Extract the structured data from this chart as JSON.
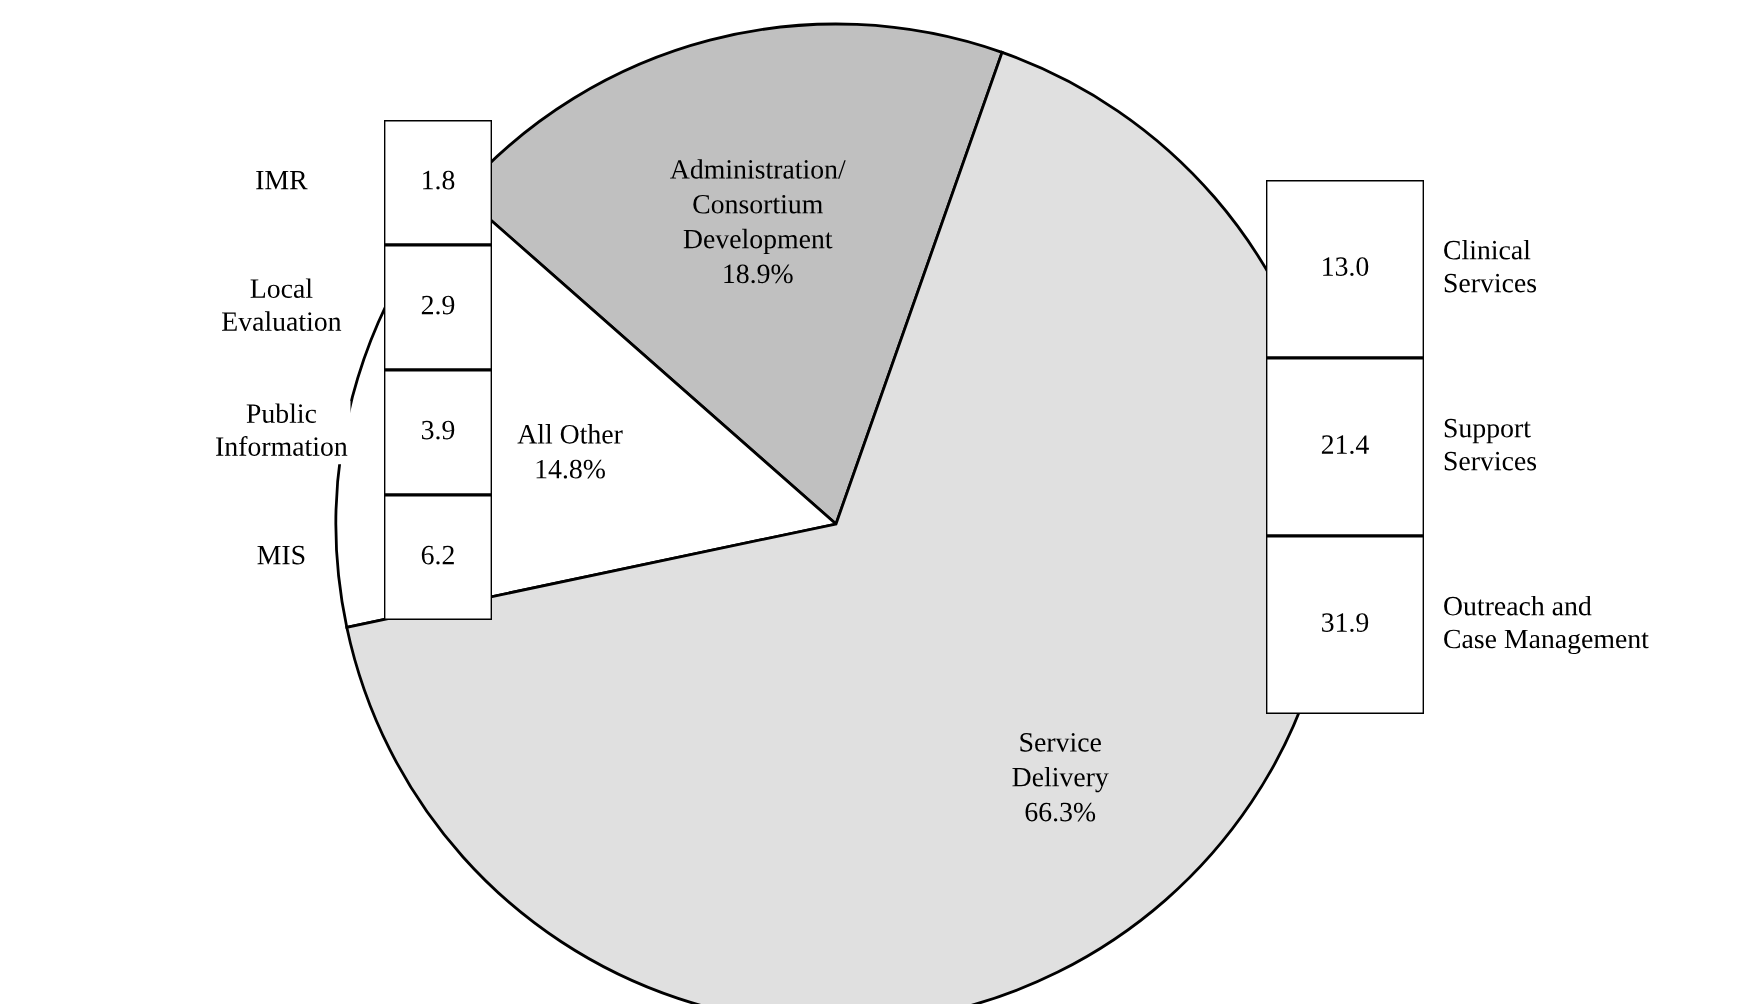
{
  "chart_data": [
    {
      "type": "pie",
      "categories": [
        "Administration/\nConsortium\nDevelopment",
        "All Other",
        "Service\nDelivery"
      ],
      "values": [
        18.9,
        14.8,
        66.3
      ],
      "colors": [
        "#c0c0c0",
        "#ffffff",
        "#e0e0e0"
      ],
      "value_labels": [
        "18.9%",
        "14.8%",
        "66.3%"
      ]
    },
    {
      "type": "other",
      "categories": [
        "IMR",
        "Local\nEvaluation",
        "Public\nInformation",
        "MIS"
      ],
      "values": [
        1.8,
        2.9,
        3.9,
        6.2
      ],
      "value_labels": [
        "1.8",
        "2.9",
        "3.9",
        "6.2"
      ]
    },
    {
      "type": "other",
      "categories": [
        "Clinical\nServices",
        "Support\nServices",
        "Outreach and\nCase Management"
      ],
      "values": [
        13.0,
        21.4,
        31.9
      ],
      "value_labels": [
        "13.0",
        "21.4",
        "31.9"
      ]
    }
  ]
}
